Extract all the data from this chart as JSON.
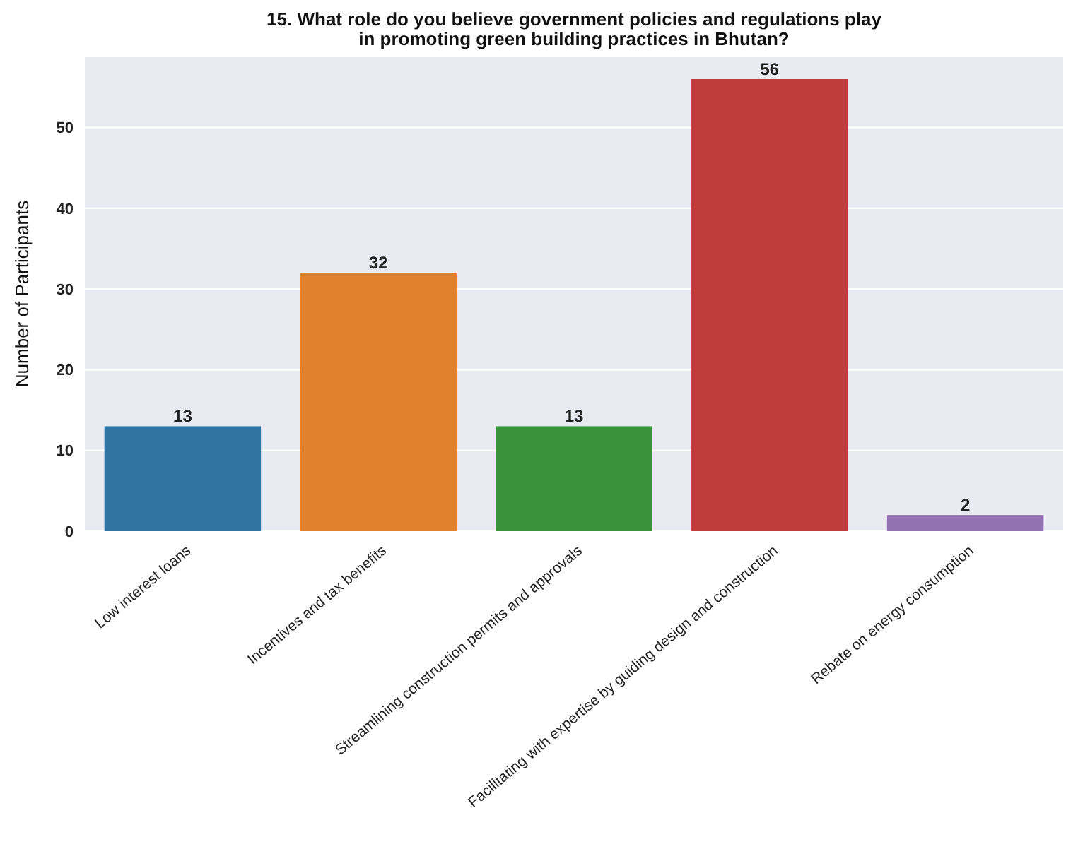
{
  "chart_data": {
    "type": "bar",
    "title": "15. What role do you believe government policies and regulations play in promoting green building practices in Bhutan?",
    "ylabel": "Number of Participants",
    "categories": [
      "Low interest loans",
      "Incentives and tax benefits",
      "Streamlining construction permits and approvals",
      "Facilitating with expertise by guiding design and construction",
      "Rebate on energy consumption"
    ],
    "values": [
      13,
      32,
      13,
      56,
      2
    ],
    "colors": [
      "#3274a1",
      "#e1812c",
      "#3a923a",
      "#c03d3e",
      "#9372b2"
    ],
    "ylim": [
      0,
      58.8
    ],
    "yticks": [
      0,
      10,
      20,
      30,
      40,
      50
    ],
    "grid": "y",
    "data_labels": true
  }
}
